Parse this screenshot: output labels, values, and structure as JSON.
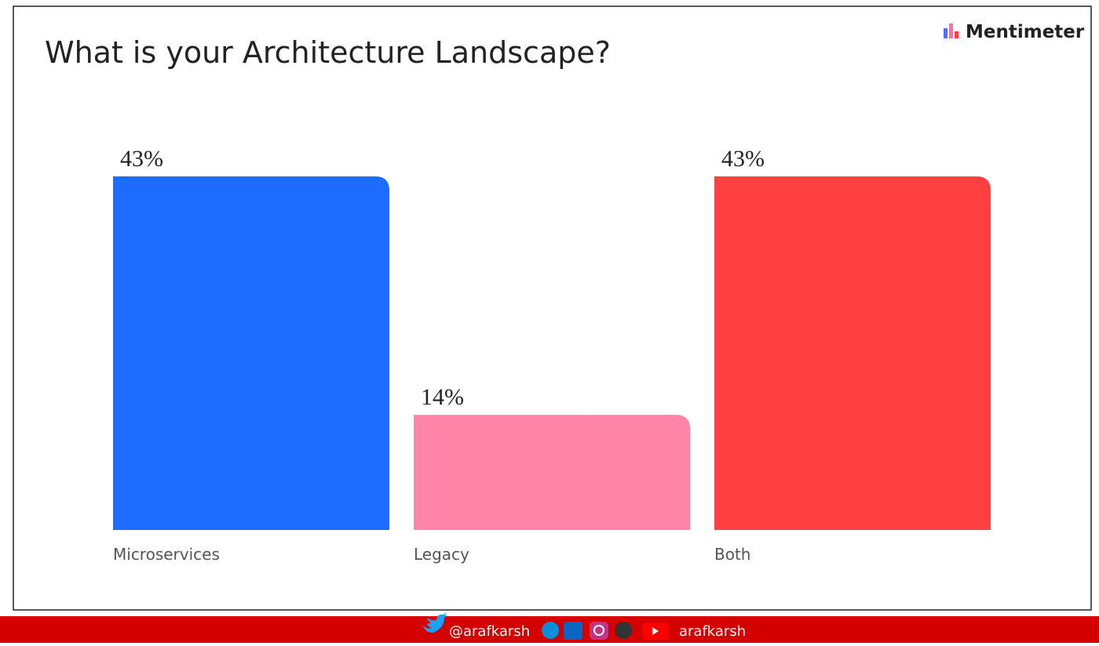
{
  "chart_data": {
    "type": "bar",
    "title": "What is your Architecture Landscape?",
    "categories": [
      "Microservices",
      "Legacy",
      "Both"
    ],
    "values": [
      43,
      14,
      43
    ],
    "value_labels": [
      "43%",
      "14%",
      "43%"
    ],
    "colors": [
      "#1e6bff",
      "#ff85a8",
      "#ff4040"
    ]
  },
  "brand": "Mentimeter",
  "footer": {
    "twitter": "@arafkarsh",
    "youtube": "arafkarsh"
  }
}
